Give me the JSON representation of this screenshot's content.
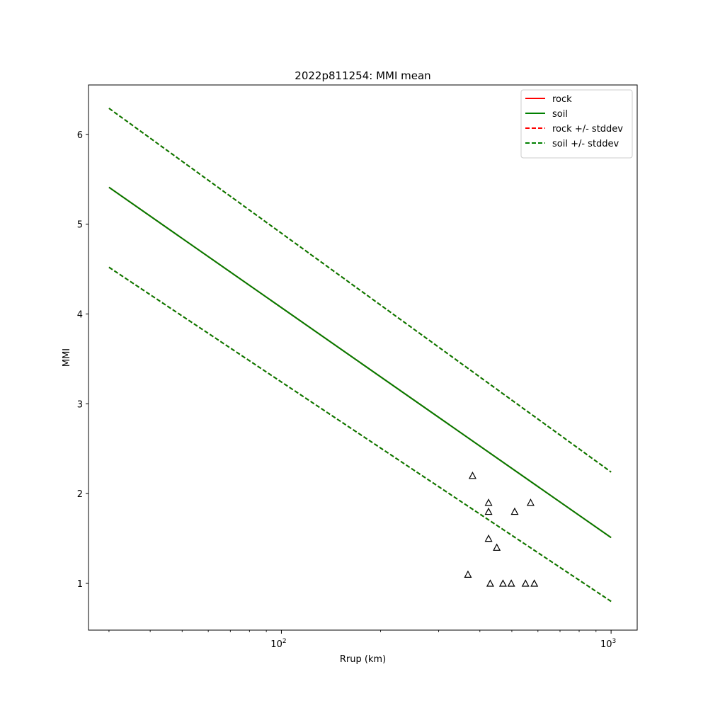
{
  "chart_data": {
    "type": "line",
    "title": "2022p811254: MMI mean",
    "xlabel": "Rrup (km)",
    "ylabel": "MMI",
    "xscale": "log",
    "xlim": [
      26.0,
      1200.0
    ],
    "ylim": [
      0.48,
      6.55
    ],
    "x_ticks": [
      {
        "value": 100,
        "base": "10",
        "exp": "2"
      },
      {
        "value": 1000,
        "base": "10",
        "exp": "3"
      }
    ],
    "y_ticks": [
      1,
      2,
      3,
      4,
      5,
      6
    ],
    "grid": false,
    "legend_position": "top-right",
    "series": [
      {
        "name": "rock",
        "style": "solid",
        "color": "#ff0000",
        "x": [
          30,
          1000
        ],
        "y": [
          5.41,
          1.51
        ]
      },
      {
        "name": "soil",
        "style": "solid",
        "color": "#008000",
        "x": [
          30,
          1000
        ],
        "y": [
          5.41,
          1.51
        ]
      },
      {
        "name": "rock +/- stddev",
        "style": "dashed",
        "color": "#ff0000",
        "x": [
          30,
          1000
        ],
        "y": [
          6.29,
          2.24
        ],
        "y2": [
          4.52,
          0.8
        ]
      },
      {
        "name": "soil +/- stddev",
        "style": "dashed",
        "color": "#008000",
        "x": [
          30,
          1000
        ],
        "y": [
          6.29,
          2.24
        ],
        "y2": [
          4.52,
          0.8
        ]
      }
    ],
    "observations": {
      "marker": "triangle",
      "points": [
        {
          "x": 380,
          "y": 2.2
        },
        {
          "x": 425,
          "y": 1.9
        },
        {
          "x": 425,
          "y": 1.8
        },
        {
          "x": 510,
          "y": 1.8
        },
        {
          "x": 570,
          "y": 1.9
        },
        {
          "x": 425,
          "y": 1.5
        },
        {
          "x": 450,
          "y": 1.4
        },
        {
          "x": 368,
          "y": 1.1
        },
        {
          "x": 430,
          "y": 1.0
        },
        {
          "x": 470,
          "y": 1.0
        },
        {
          "x": 498,
          "y": 1.0
        },
        {
          "x": 550,
          "y": 1.0
        },
        {
          "x": 585,
          "y": 1.0
        }
      ]
    }
  }
}
